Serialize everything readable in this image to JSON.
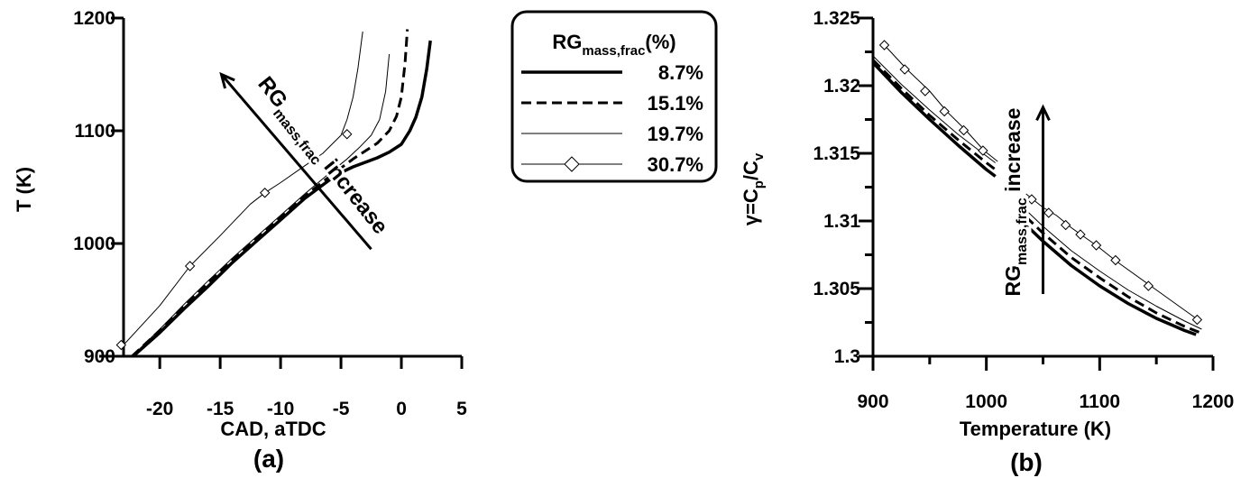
{
  "chart_data": [
    {
      "type": "line",
      "panel_label": "(a)",
      "xlabel": "CAD, aTDC",
      "ylabel": "T (K)",
      "xlim": [
        -23,
        5
      ],
      "ylim": [
        900,
        1200
      ],
      "xticks": [
        -20,
        -15,
        -10,
        -5,
        0,
        5
      ],
      "yticks": [
        900,
        1000,
        1100,
        1200
      ],
      "xtick_labels": [
        "-20",
        "-15",
        "-10",
        "-5",
        "0",
        "5"
      ],
      "ytick_labels": [
        "900",
        "1000",
        "1100",
        "1200"
      ],
      "grid": false,
      "annotation": {
        "main": "RG",
        "sub": "mass,frac",
        "tail": " increase",
        "arrow_from": [
          -2.5,
          995
        ],
        "arrow_to": [
          -14.9,
          1150
        ]
      },
      "series": [
        {
          "name": "8.7%",
          "style": "thick-solid",
          "x": [
            -22.2,
            -20,
            -18,
            -16,
            -14,
            -12,
            -10,
            -8,
            -6,
            -5,
            -4,
            -3,
            -2,
            -1,
            0,
            0.7,
            1.2,
            1.7,
            2.1,
            2.4
          ],
          "y": [
            900,
            921,
            942,
            962,
            983,
            1002,
            1021,
            1040,
            1056,
            1063,
            1068,
            1072,
            1076,
            1081,
            1088,
            1100,
            1112,
            1130,
            1155,
            1180
          ]
        },
        {
          "name": "15.1%",
          "style": "dashed",
          "x": [
            -22.3,
            -20,
            -18,
            -16,
            -14,
            -12,
            -10,
            -8,
            -6,
            -5,
            -4,
            -3,
            -2,
            -1,
            -0.4,
            0,
            0.3,
            0.5
          ],
          "y": [
            900,
            923,
            944,
            965,
            985,
            1004,
            1023,
            1042,
            1059,
            1067,
            1075,
            1082,
            1089,
            1100,
            1113,
            1130,
            1160,
            1190
          ]
        },
        {
          "name": "19.7%",
          "style": "thin-solid",
          "x": [
            -22.3,
            -20,
            -18,
            -16,
            -14,
            -12,
            -10,
            -8,
            -6,
            -4.5,
            -3.5,
            -2.5,
            -1.8,
            -1.3,
            -1
          ],
          "y": [
            900,
            924,
            946,
            967,
            987,
            1006,
            1025,
            1044,
            1062,
            1075,
            1085,
            1096,
            1110,
            1135,
            1168
          ]
        },
        {
          "name": "30.7%",
          "style": "thin-diamond",
          "x": [
            -23,
            -20,
            -17.5,
            -15,
            -12.5,
            -11.3,
            -10,
            -8,
            -6.5,
            -5,
            -4.5,
            -4,
            -3.6,
            -3.2
          ],
          "y": [
            910,
            945,
            980,
            1007,
            1035,
            1045,
            1054,
            1069,
            1080,
            1096,
            1110,
            1130,
            1155,
            1188
          ],
          "markers_x": [
            -23.2,
            -17.5,
            -11.3,
            -4.5
          ],
          "markers_y": [
            910,
            980,
            1045,
            1097
          ]
        }
      ]
    },
    {
      "type": "line",
      "panel_label": "(b)",
      "xlabel": "Temperature (K)",
      "ylabel_parts": {
        "gamma": "γ=C",
        "p": "p",
        "slash": "/C",
        "v": "v"
      },
      "xlim": [
        900,
        1200
      ],
      "ylim": [
        1.3,
        1.325
      ],
      "xticks": [
        900,
        1000,
        1100,
        1200
      ],
      "yticks": [
        1.3,
        1.305,
        1.31,
        1.315,
        1.32,
        1.325
      ],
      "xtick_labels": [
        "900",
        "1000",
        "1100",
        "1200"
      ],
      "ytick_labels": [
        "1.3",
        "1.305",
        "1.31",
        "1.315",
        "1.32",
        "1.325"
      ],
      "grid": false,
      "annotation": {
        "main": "RG",
        "sub": "mass,frac",
        "tail": " increase",
        "arrow_from": [
          1050,
          1.3046
        ],
        "arrow_to": [
          1050,
          1.3184
        ]
      },
      "series": [
        {
          "name": "8.7%",
          "style": "thick-solid",
          "x": [
            900,
            925,
            950,
            975,
            1000,
            1008
          ],
          "y": [
            1.3217,
            1.3195,
            1.3175,
            1.3156,
            1.3138,
            1.3133
          ],
          "x2": [
            1035,
            1050,
            1075,
            1100,
            1125,
            1150,
            1175,
            1185
          ],
          "y2": [
            1.3097,
            1.3085,
            1.3067,
            1.3052,
            1.3039,
            1.3028,
            1.3019,
            1.3016
          ]
        },
        {
          "name": "15.1%",
          "style": "dashed",
          "x": [
            900,
            925,
            950,
            975,
            1000,
            1008
          ],
          "y": [
            1.3219,
            1.3198,
            1.3178,
            1.316,
            1.3143,
            1.3138
          ],
          "x2": [
            1035,
            1050,
            1075,
            1100,
            1125,
            1150,
            1175,
            1190
          ],
          "y2": [
            1.3103,
            1.3091,
            1.3073,
            1.3058,
            1.3044,
            1.3032,
            1.3022,
            1.3017
          ]
        },
        {
          "name": "19.7%",
          "style": "thin-solid",
          "x": [
            900,
            925,
            950,
            975,
            1000,
            1008
          ],
          "y": [
            1.3222,
            1.3201,
            1.3182,
            1.3164,
            1.3148,
            1.3143
          ],
          "x2": [
            1035,
            1050,
            1075,
            1100,
            1125,
            1150,
            1175,
            1190
          ],
          "y2": [
            1.3108,
            1.3096,
            1.3078,
            1.3063,
            1.3049,
            1.3037,
            1.3026,
            1.302
          ]
        },
        {
          "name": "30.7%",
          "style": "thin-diamond",
          "x": [
            910,
            930,
            950,
            965,
            982,
            998,
            1010
          ],
          "y": [
            1.323,
            1.3212,
            1.3196,
            1.3181,
            1.3167,
            1.3152,
            1.3144
          ],
          "x2": [
            1035,
            1050,
            1062,
            1075,
            1085,
            1097,
            1115,
            1145,
            1170,
            1185
          ],
          "y2": [
            1.312,
            1.311,
            1.3104,
            1.3095,
            1.3089,
            1.3082,
            1.307,
            1.3052,
            1.3037,
            1.3028
          ],
          "markers_x": [
            910,
            928,
            946,
            963,
            980,
            997,
            1040,
            1055,
            1070,
            1083,
            1097,
            1114,
            1143,
            1186
          ],
          "markers_y": [
            1.323,
            1.3212,
            1.3196,
            1.3181,
            1.3167,
            1.3152,
            1.3116,
            1.3106,
            1.3097,
            1.309,
            1.3082,
            1.3071,
            1.3052,
            1.3027
          ]
        }
      ]
    }
  ],
  "legend": {
    "title_main": "RG",
    "title_sub": "mass,frac",
    "title_tail": "(%)",
    "placement": "top-center",
    "entries": [
      "8.7%",
      "15.1%",
      "19.7%",
      "30.7%"
    ]
  }
}
